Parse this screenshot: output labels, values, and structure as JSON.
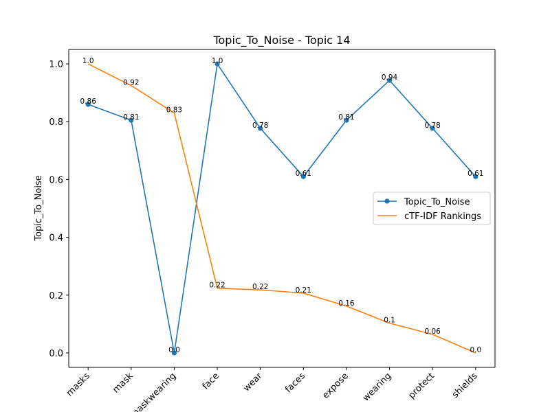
{
  "chart_data": {
    "type": "line",
    "title": "Topic_To_Noise - Topic 14",
    "xlabel": "",
    "ylabel": "Topic_To_Noise",
    "categories": [
      "masks",
      "mask",
      "maskwearing",
      "face",
      "wear",
      "faces",
      "expose",
      "wearing",
      "protect",
      "shields"
    ],
    "ylim": [
      -0.05,
      1.05
    ],
    "yticks": [
      "0.0",
      "0.2",
      "0.4",
      "0.6",
      "0.8",
      "1.0"
    ],
    "grid": false,
    "legend_position": "center-right",
    "series": [
      {
        "name": "Topic_To_Noise",
        "color": "#1f77b4",
        "marker": "circle",
        "values": [
          0.86,
          0.805,
          0.0,
          1.0,
          0.777,
          0.61,
          0.805,
          0.943,
          0.777,
          0.61
        ],
        "labels": [
          "0.86",
          "0.81",
          "0.0",
          "1.0",
          "0.78",
          "0.61",
          "0.81",
          "0.94",
          "0.78",
          "0.61"
        ]
      },
      {
        "name": "cTF-IDF Rankings",
        "color": "#ff7f0e",
        "marker": "none",
        "values": [
          1.0,
          0.925,
          0.83,
          0.224,
          0.218,
          0.207,
          0.162,
          0.103,
          0.064,
          0.0
        ],
        "labels": [
          "1.0",
          "0.92",
          "0.83",
          "0.22",
          "0.22",
          "0.21",
          "0.16",
          "0.1",
          "0.06",
          "0.0"
        ]
      }
    ]
  }
}
